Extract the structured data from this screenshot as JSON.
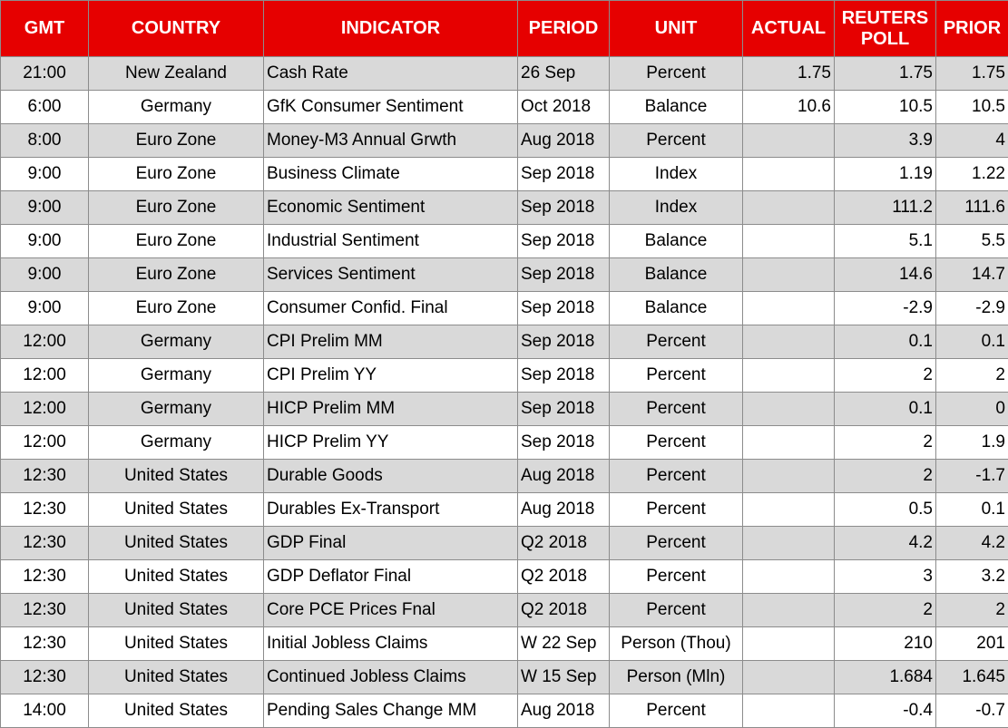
{
  "table": {
    "headers": [
      "GMT",
      "COUNTRY",
      "INDICATOR",
      "PERIOD",
      "UNIT",
      "ACTUAL",
      "REUTERS POLL",
      "PRIOR"
    ],
    "rows": [
      [
        "21:00",
        "New Zealand",
        "Cash Rate",
        "26 Sep",
        "Percent",
        "1.75",
        "1.75",
        "1.75"
      ],
      [
        "6:00",
        "Germany",
        "GfK Consumer Sentiment",
        "Oct 2018",
        "Balance",
        "10.6",
        "10.5",
        "10.5"
      ],
      [
        "8:00",
        "Euro Zone",
        "Money-M3 Annual Grwth",
        "Aug 2018",
        "Percent",
        null,
        "3.9",
        "4"
      ],
      [
        "9:00",
        "Euro Zone",
        "Business Climate",
        "Sep 2018",
        "Index",
        null,
        "1.19",
        "1.22"
      ],
      [
        "9:00",
        "Euro Zone",
        "Economic Sentiment",
        "Sep 2018",
        "Index",
        null,
        "111.2",
        "111.6"
      ],
      [
        "9:00",
        "Euro Zone",
        "Industrial Sentiment",
        "Sep 2018",
        "Balance",
        null,
        "5.1",
        "5.5"
      ],
      [
        "9:00",
        "Euro Zone",
        "Services Sentiment",
        "Sep 2018",
        "Balance",
        null,
        "14.6",
        "14.7"
      ],
      [
        "9:00",
        "Euro Zone",
        "Consumer Confid. Final",
        "Sep 2018",
        "Balance",
        null,
        "-2.9",
        "-2.9"
      ],
      [
        "12:00",
        "Germany",
        "CPI Prelim MM",
        "Sep 2018",
        "Percent",
        null,
        "0.1",
        "0.1"
      ],
      [
        "12:00",
        "Germany",
        "CPI Prelim YY",
        "Sep 2018",
        "Percent",
        null,
        "2",
        "2"
      ],
      [
        "12:00",
        "Germany",
        "HICP Prelim MM",
        "Sep 2018",
        "Percent",
        null,
        "0.1",
        "0"
      ],
      [
        "12:00",
        "Germany",
        "HICP Prelim YY",
        "Sep 2018",
        "Percent",
        null,
        "2",
        "1.9"
      ],
      [
        "12:30",
        "United States",
        "Durable Goods",
        "Aug 2018",
        "Percent",
        null,
        "2",
        "-1.7"
      ],
      [
        "12:30",
        "United States",
        "Durables Ex-Transport",
        "Aug 2018",
        "Percent",
        null,
        "0.5",
        "0.1"
      ],
      [
        "12:30",
        "United States",
        "GDP Final",
        "Q2 2018",
        "Percent",
        null,
        "4.2",
        "4.2"
      ],
      [
        "12:30",
        "United States",
        "GDP Deflator Final",
        "Q2 2018",
        "Percent",
        null,
        "3",
        "3.2"
      ],
      [
        "12:30",
        "United States",
        "Core PCE Prices Fnal",
        "Q2 2018",
        "Percent",
        null,
        "2",
        "2"
      ],
      [
        "12:30",
        "United States",
        "Initial Jobless Claims",
        "W 22 Sep",
        "Person (Thou)",
        null,
        "210",
        "201"
      ],
      [
        "12:30",
        "United States",
        "Continued Jobless Claims",
        "W 15 Sep",
        "Person (Mln)",
        null,
        "1.684",
        "1.645"
      ],
      [
        "14:00",
        "United States",
        "Pending Sales Change MM",
        "Aug 2018",
        "Percent",
        null,
        "-0.4",
        "-0.7"
      ]
    ]
  }
}
